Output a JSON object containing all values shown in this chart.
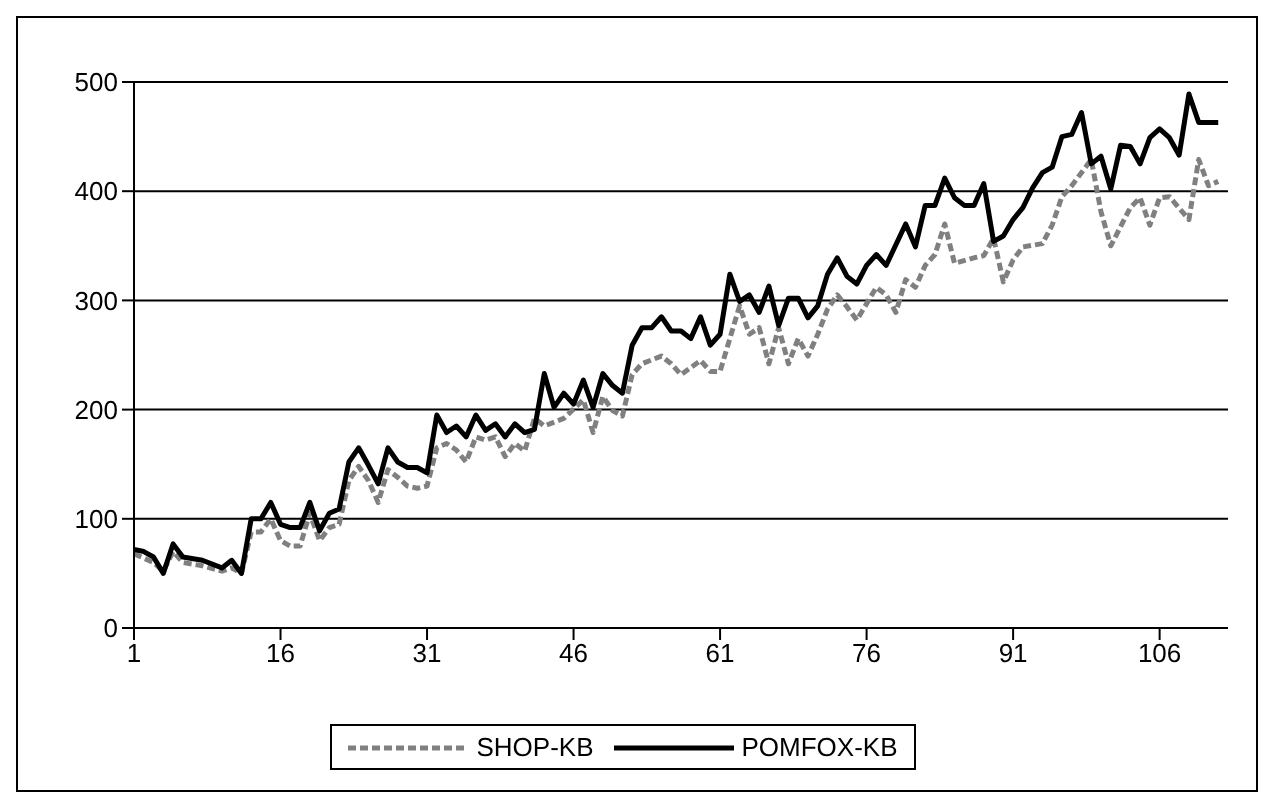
{
  "chart_data": {
    "type": "line",
    "xlim": [
      1,
      113
    ],
    "xticks": [
      1,
      16,
      31,
      46,
      61,
      76,
      91,
      106
    ],
    "ylim": [
      0,
      500
    ],
    "yticks": [
      0,
      100,
      200,
      300,
      400,
      500
    ],
    "grid": "y",
    "legend": "bottom",
    "marker": "none",
    "series": [
      {
        "name": "SHOP-KB",
        "color": "#808080",
        "line_style": "dashed",
        "x": [
          1,
          3,
          4,
          5,
          6,
          8,
          10,
          11,
          12,
          13,
          14,
          15,
          16,
          17,
          18,
          19,
          20,
          21,
          22,
          23,
          24,
          25,
          26,
          27,
          28,
          29,
          30,
          31,
          32,
          33,
          34,
          35,
          36,
          37,
          38,
          39,
          40,
          41,
          42,
          43,
          45,
          47,
          48,
          49,
          50,
          51,
          52,
          53,
          55,
          56,
          57,
          59,
          60,
          61,
          63,
          64,
          65,
          66,
          67,
          68,
          69,
          70,
          71,
          72,
          73,
          74,
          75,
          77,
          78,
          79,
          80,
          81,
          82,
          83,
          84,
          85,
          87,
          88,
          89,
          90,
          91,
          92,
          94,
          95,
          96,
          97,
          99,
          100,
          101,
          103,
          104,
          105,
          106,
          107,
          109,
          110,
          111,
          112
        ],
        "values": [
          68,
          60,
          52,
          70,
          60,
          57,
          52,
          55,
          50,
          88,
          88,
          100,
          80,
          75,
          75,
          105,
          80,
          92,
          95,
          135,
          148,
          135,
          115,
          145,
          138,
          130,
          128,
          130,
          165,
          169,
          163,
          152,
          175,
          172,
          175,
          157,
          169,
          162,
          192,
          185,
          192,
          209,
          179,
          212,
          199,
          194,
          232,
          242,
          249,
          242,
          232,
          245,
          235,
          235,
          295,
          269,
          275,
          242,
          275,
          242,
          265,
          249,
          269,
          292,
          305,
          294,
          282,
          312,
          305,
          289,
          319,
          312,
          332,
          342,
          370,
          334,
          339,
          341,
          357,
          317,
          337,
          349,
          352,
          369,
          395,
          405,
          429,
          381,
          350,
          385,
          394,
          369,
          394,
          395,
          374,
          429,
          405,
          409
        ]
      },
      {
        "name": "POMFOX-KB",
        "color": "#000000",
        "line_style": "solid",
        "x": [
          1,
          2,
          3,
          4,
          5,
          6,
          8,
          10,
          11,
          12,
          13,
          14,
          15,
          16,
          17,
          18,
          19,
          20,
          21,
          22,
          23,
          24,
          25,
          26,
          27,
          28,
          29,
          30,
          31,
          32,
          33,
          34,
          35,
          36,
          37,
          38,
          39,
          40,
          41,
          42,
          43,
          44,
          45,
          46,
          47,
          48,
          49,
          50,
          51,
          52,
          53,
          54,
          55,
          56,
          57,
          58,
          59,
          60,
          61,
          62,
          63,
          64,
          65,
          66,
          67,
          68,
          69,
          70,
          71,
          72,
          73,
          74,
          75,
          76,
          77,
          78,
          80,
          81,
          82,
          83,
          84,
          85,
          86,
          87,
          88,
          89,
          90,
          91,
          92,
          93,
          94,
          95,
          96,
          97,
          98,
          99,
          100,
          101,
          102,
          103,
          104,
          105,
          106,
          107,
          108,
          109,
          110,
          111,
          112
        ],
        "values": [
          72,
          70,
          65,
          50,
          77,
          65,
          62,
          55,
          62,
          50,
          100,
          100,
          115,
          95,
          92,
          92,
          115,
          89,
          105,
          109,
          152,
          165,
          149,
          132,
          165,
          152,
          147,
          147,
          142,
          195,
          179,
          185,
          175,
          195,
          181,
          187,
          175,
          187,
          179,
          182,
          233,
          202,
          215,
          205,
          227,
          202,
          233,
          222,
          215,
          259,
          275,
          275,
          285,
          272,
          272,
          265,
          285,
          259,
          269,
          324,
          299,
          305,
          289,
          313,
          277,
          302,
          302,
          284,
          295,
          324,
          339,
          322,
          315,
          332,
          342,
          332,
          370,
          349,
          387,
          387,
          412,
          394,
          387,
          387,
          407,
          354,
          359,
          374,
          385,
          403,
          417,
          422,
          450,
          452,
          472,
          425,
          432,
          402,
          442,
          441,
          425,
          449,
          457,
          449,
          433,
          489,
          463,
          463,
          463
        ]
      }
    ]
  }
}
